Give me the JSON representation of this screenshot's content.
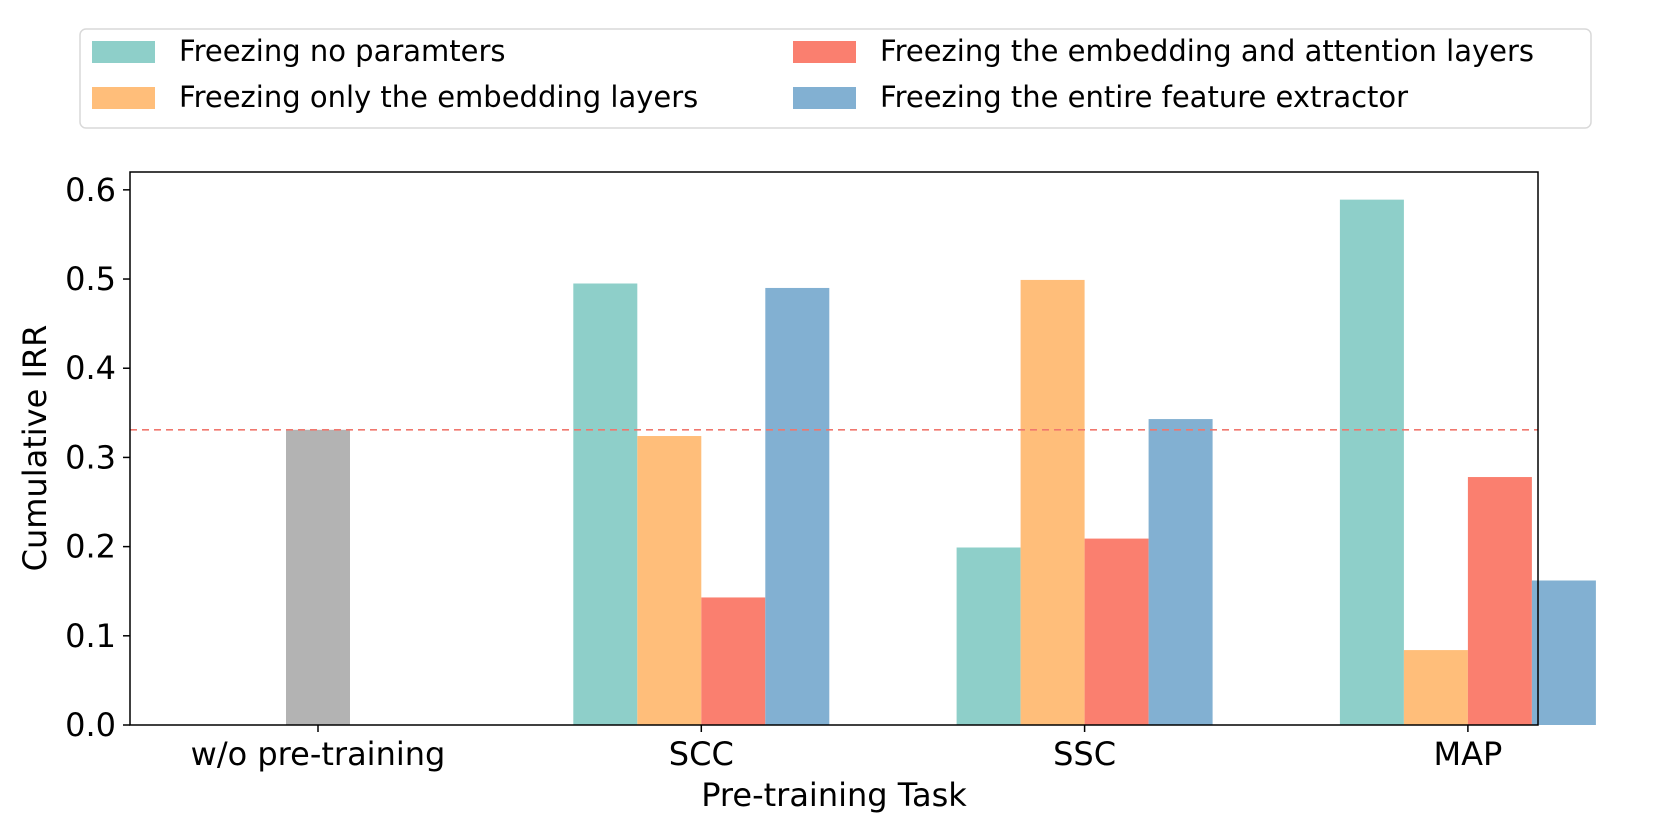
{
  "chart_data": {
    "type": "bar",
    "xlabel": "Pre-training Task",
    "ylabel": "Cumulative IRR",
    "ylim": [
      0,
      0.62
    ],
    "yticks": [
      "0.0",
      "0.1",
      "0.2",
      "0.3",
      "0.4",
      "0.5",
      "0.6"
    ],
    "categories": [
      "w/o pre-training",
      "SCC",
      "SSC",
      "MAP"
    ],
    "legend_position": "top",
    "baseline": {
      "value": 0.331,
      "color": "#f0776e",
      "style": "dashed"
    },
    "series": [
      {
        "name": "Freezing no paramters",
        "color": "#8ecfc9",
        "values": [
          null,
          0.495,
          0.199,
          0.589
        ]
      },
      {
        "name": "Freezing only the embedding layers",
        "color": "#ffbe7a",
        "values": [
          null,
          0.324,
          0.499,
          0.084
        ]
      },
      {
        "name": "Freezing the embedding and attention layers",
        "color": "#fa7f6f",
        "values": [
          null,
          0.143,
          0.209,
          0.278
        ]
      },
      {
        "name": "Freezing the entire feature extractor",
        "color": "#82b0d2",
        "values": [
          null,
          0.49,
          0.343,
          0.162
        ]
      }
    ],
    "baseline_bar": {
      "category": "w/o pre-training",
      "value": 0.331,
      "color": "#b3b3b3"
    }
  }
}
